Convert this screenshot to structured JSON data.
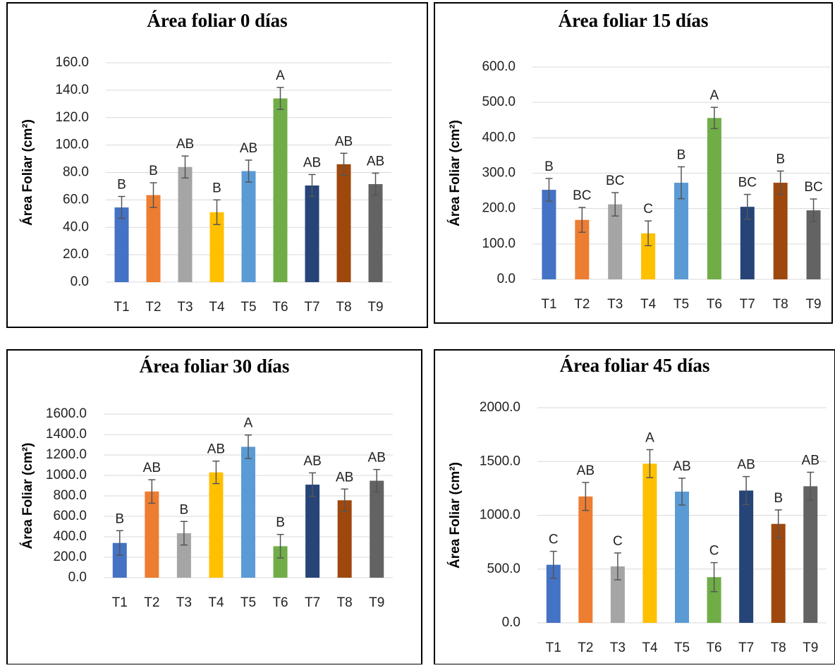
{
  "chart_data": [
    {
      "type": "bar",
      "title": "Área foliar 0 días",
      "y_label": "Área Foliar (cm²)",
      "categories": [
        "T1",
        "T2",
        "T3",
        "T4",
        "T5",
        "T6",
        "T7",
        "T8",
        "T9"
      ],
      "colors": [
        "#4472c4",
        "#ed7d31",
        "#a5a5a5",
        "#ffc000",
        "#5b9bd5",
        "#70ad47",
        "#264478",
        "#9e480e",
        "#636363"
      ],
      "values": [
        54.5,
        63.5,
        84,
        51,
        81,
        134,
        70.5,
        86,
        71.5
      ],
      "errors": [
        8,
        9,
        8,
        9,
        8,
        8,
        8,
        8,
        8
      ],
      "annotations": [
        "B",
        "B",
        "AB",
        "B",
        "AB",
        "A",
        "AB",
        "AB",
        "AB"
      ],
      "ylim": [
        0,
        160
      ],
      "yticks": [
        {
          "value": 0,
          "label": "0.0"
        },
        {
          "value": 20,
          "label": "20.0"
        },
        {
          "value": 40,
          "label": "40.0"
        },
        {
          "value": 60,
          "label": "60.0"
        },
        {
          "value": 80,
          "label": "80.0"
        },
        {
          "value": 100,
          "label": "100.0"
        },
        {
          "value": 120,
          "label": "120.0"
        },
        {
          "value": 140,
          "label": "140.0"
        },
        {
          "value": 160,
          "label": "160.0"
        }
      ],
      "grid": true
    },
    {
      "type": "bar",
      "title": "Área foliar 15 días",
      "y_label": "Área Foliar (cm²)",
      "categories": [
        "T1",
        "T2",
        "T3",
        "T4",
        "T5",
        "T6",
        "T7",
        "T8",
        "T9"
      ],
      "colors": [
        "#4472c4",
        "#ed7d31",
        "#a5a5a5",
        "#ffc000",
        "#5b9bd5",
        "#70ad47",
        "#264478",
        "#9e480e",
        "#636363"
      ],
      "values": [
        253,
        168,
        212,
        130,
        273,
        456,
        205,
        273,
        195
      ],
      "errors": [
        32,
        35,
        33,
        35,
        45,
        30,
        35,
        33,
        32
      ],
      "annotations": [
        "B",
        "BC",
        "BC",
        "C",
        "B",
        "A",
        "BC",
        "B",
        "BC"
      ],
      "ylim": [
        0,
        600
      ],
      "yticks": [
        {
          "value": 0,
          "label": "0.0"
        },
        {
          "value": 100,
          "label": "100.0"
        },
        {
          "value": 200,
          "label": "200.0"
        },
        {
          "value": 300,
          "label": "300.0"
        },
        {
          "value": 400,
          "label": "400.0"
        },
        {
          "value": 500,
          "label": "500.0"
        },
        {
          "value": 600,
          "label": "600.0"
        }
      ],
      "grid": true
    },
    {
      "type": "bar",
      "title": "Área foliar 30 días",
      "y_label": "Área Foliar (cm²)",
      "categories": [
        "T1",
        "T2",
        "T3",
        "T4",
        "T5",
        "T6",
        "T7",
        "T8",
        "T9"
      ],
      "colors": [
        "#4472c4",
        "#ed7d31",
        "#a5a5a5",
        "#ffc000",
        "#5b9bd5",
        "#70ad47",
        "#264478",
        "#9e480e",
        "#636363"
      ],
      "values": [
        340,
        843,
        435,
        1030,
        1280,
        308,
        910,
        757,
        948
      ],
      "errors": [
        120,
        115,
        115,
        110,
        115,
        115,
        115,
        110,
        110
      ],
      "annotations": [
        "B",
        "AB",
        "B",
        "AB",
        "A",
        "B",
        "AB",
        "AB",
        "AB"
      ],
      "ylim": [
        0,
        1600
      ],
      "yticks": [
        {
          "value": 0,
          "label": "0.0"
        },
        {
          "value": 200,
          "label": "200.0"
        },
        {
          "value": 400,
          "label": "400.0"
        },
        {
          "value": 600,
          "label": "600.0"
        },
        {
          "value": 800,
          "label": "800.0"
        },
        {
          "value": 1000,
          "label": "1000.0"
        },
        {
          "value": 1200,
          "label": "1200.0"
        },
        {
          "value": 1400,
          "label": "1400.0"
        },
        {
          "value": 1600,
          "label": "1600.0"
        }
      ],
      "grid": true
    },
    {
      "type": "bar",
      "title": "Área foliar 45 días",
      "y_label": "Área Foliar (cm²)",
      "categories": [
        "T1",
        "T2",
        "T3",
        "T4",
        "T5",
        "T6",
        "T7",
        "T8",
        "T9"
      ],
      "colors": [
        "#4472c4",
        "#ed7d31",
        "#a5a5a5",
        "#ffc000",
        "#5b9bd5",
        "#70ad47",
        "#264478",
        "#9e480e",
        "#636363"
      ],
      "values": [
        540,
        1175,
        525,
        1480,
        1220,
        425,
        1230,
        920,
        1270
      ],
      "errors": [
        125,
        130,
        125,
        130,
        125,
        135,
        130,
        130,
        130
      ],
      "annotations": [
        "C",
        "AB",
        "C",
        "A",
        "AB",
        "C",
        "AB",
        "B",
        "AB"
      ],
      "ylim": [
        0,
        2000
      ],
      "yticks": [
        {
          "value": 0,
          "label": "0.0"
        },
        {
          "value": 500,
          "label": "500.0"
        },
        {
          "value": 1000,
          "label": "1000.0"
        },
        {
          "value": 1500,
          "label": "1500.0"
        },
        {
          "value": 2000,
          "label": "2000.0"
        }
      ],
      "grid": true
    }
  ]
}
